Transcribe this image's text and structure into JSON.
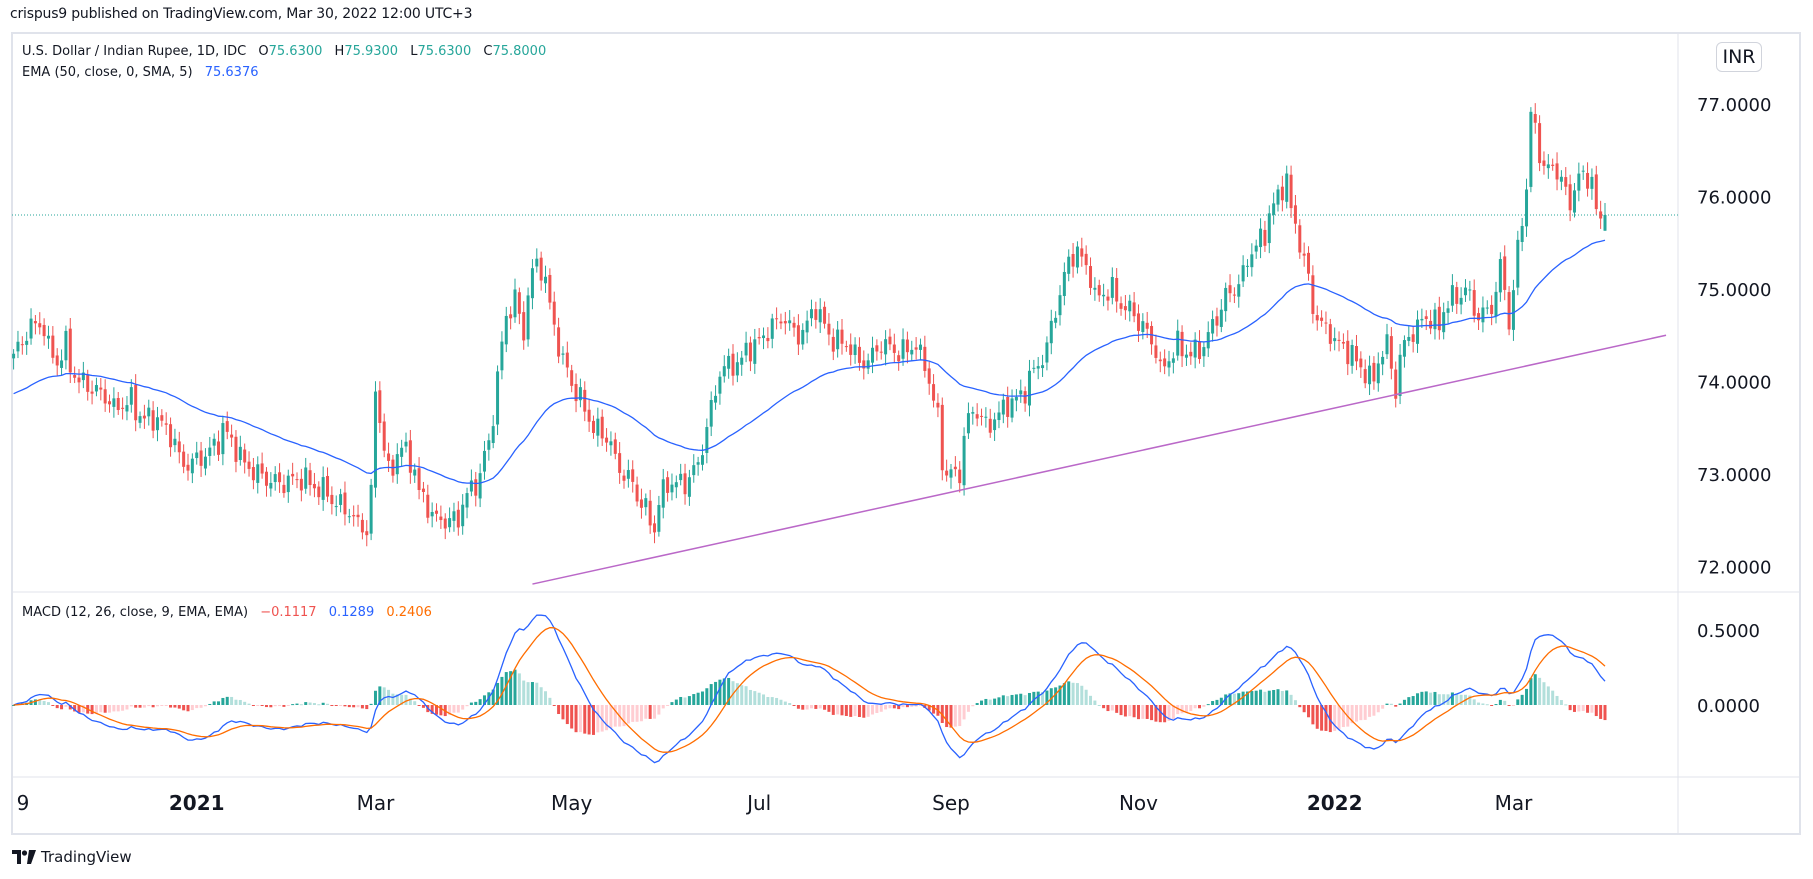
{
  "header": {
    "published": "crispus9 published on TradingView.com, Mar 30, 2022 12:00 UTC+3"
  },
  "legend": {
    "symbol": "U.S. Dollar / Indian Rupee, 1D, IDC",
    "open_label": "O",
    "open": "75.6300",
    "high_label": "H",
    "high": "75.9300",
    "low_label": "L",
    "low": "75.6300",
    "close_label": "C",
    "close": "75.8000",
    "ema_label": "EMA (50, close, 0, SMA, 5)",
    "ema_value": "75.6376",
    "macd_label": "MACD (12, 26, close, 9, EMA, EMA)",
    "macd_hist": "−0.1117",
    "macd_line": "0.1289",
    "macd_signal": "0.2406"
  },
  "currency_badge": "INR",
  "footer": {
    "brand": "TradingView"
  },
  "colors": {
    "up": "#26a69a",
    "down": "#ef5350",
    "ema": "#2962ff",
    "macd": "#2962ff",
    "signal": "#ff6d00",
    "hist_up_strong": "#26a69a",
    "hist_up_weak": "#b2dfdb",
    "hist_down_strong": "#ef5350",
    "hist_down_weak": "#ffcdd2",
    "trendline": "#ba68c8",
    "last_price_line": "#26a69a"
  },
  "chart_data": {
    "type": "candlestick",
    "symbol": "USDINR",
    "interval": "1D",
    "price_axis": {
      "ticks": [
        "77.0000",
        "76.0000",
        "75.0000",
        "74.0000",
        "73.0000",
        "72.0000"
      ],
      "tick_values": [
        77,
        76,
        75,
        74,
        73,
        72
      ],
      "range": [
        71.8,
        77.5
      ]
    },
    "macd_axis": {
      "ticks": [
        "0.5000",
        "0.0000"
      ],
      "tick_values": [
        0.5,
        0
      ],
      "range": [
        -0.48,
        0.75
      ]
    },
    "time_axis": [
      {
        "label": "9",
        "date": "2020-11-09",
        "bold": false
      },
      {
        "label": "2021",
        "date": "2021-01-01",
        "bold": true
      },
      {
        "label": "Mar",
        "date": "2021-03-01",
        "bold": false
      },
      {
        "label": "May",
        "date": "2021-05-03",
        "bold": false
      },
      {
        "label": "Jul",
        "date": "2021-07-01",
        "bold": false
      },
      {
        "label": "Sep",
        "date": "2021-09-01",
        "bold": false
      },
      {
        "label": "Nov",
        "date": "2021-11-01",
        "bold": false
      },
      {
        "label": "2022",
        "date": "2022-01-03",
        "bold": true
      },
      {
        "label": "Mar",
        "date": "2022-03-01",
        "bold": false
      }
    ],
    "start_date": "2020-11-04",
    "end_date": "2022-03-30",
    "last_candle": {
      "open": 75.63,
      "high": 75.93,
      "low": 75.63,
      "close": 75.8
    },
    "last_price": 75.8,
    "close_path": [
      [
        "2020-11-04",
        74.3
      ],
      [
        "2020-11-10",
        74.6
      ],
      [
        "2020-11-13",
        74.6
      ],
      [
        "2020-11-18",
        74.2
      ],
      [
        "2020-11-20",
        74.4
      ],
      [
        "2020-11-25",
        74.0
      ],
      [
        "2020-12-01",
        73.9
      ],
      [
        "2020-12-07",
        73.7
      ],
      [
        "2020-12-11",
        73.8
      ],
      [
        "2020-12-16",
        73.6
      ],
      [
        "2020-12-21",
        73.6
      ],
      [
        "2020-12-29",
        73.1
      ],
      [
        "2021-01-05",
        73.2
      ],
      [
        "2021-01-11",
        73.5
      ],
      [
        "2021-01-15",
        73.2
      ],
      [
        "2021-01-21",
        73.0
      ],
      [
        "2021-01-28",
        72.9
      ],
      [
        "2021-02-05",
        72.95
      ],
      [
        "2021-02-12",
        72.8
      ],
      [
        "2021-02-19",
        72.6
      ],
      [
        "2021-02-25",
        72.4
      ],
      [
        "2021-03-01",
        73.9
      ],
      [
        "2021-03-04",
        73.0
      ],
      [
        "2021-03-09",
        73.3
      ],
      [
        "2021-03-15",
        72.8
      ],
      [
        "2021-03-19",
        72.5
      ],
      [
        "2021-03-26",
        72.5
      ],
      [
        "2021-04-01",
        72.9
      ],
      [
        "2021-04-06",
        73.3
      ],
      [
        "2021-04-09",
        74.4
      ],
      [
        "2021-04-14",
        74.9
      ],
      [
        "2021-04-16",
        74.5
      ],
      [
        "2021-04-21",
        75.3
      ],
      [
        "2021-04-26",
        74.8
      ],
      [
        "2021-04-29",
        74.2
      ],
      [
        "2021-05-04",
        73.9
      ],
      [
        "2021-05-07",
        73.6
      ],
      [
        "2021-05-13",
        73.4
      ],
      [
        "2021-05-19",
        73.0
      ],
      [
        "2021-05-25",
        72.7
      ],
      [
        "2021-05-28",
        72.4
      ],
      [
        "2021-06-02",
        72.9
      ],
      [
        "2021-06-08",
        72.9
      ],
      [
        "2021-06-14",
        73.3
      ],
      [
        "2021-06-18",
        74.1
      ],
      [
        "2021-06-24",
        74.2
      ],
      [
        "2021-06-30",
        74.4
      ],
      [
        "2021-07-06",
        74.6
      ],
      [
        "2021-07-09",
        74.7
      ],
      [
        "2021-07-14",
        74.5
      ],
      [
        "2021-07-20",
        74.8
      ],
      [
        "2021-07-23",
        74.5
      ],
      [
        "2021-07-29",
        74.4
      ],
      [
        "2021-08-04",
        74.2
      ],
      [
        "2021-08-10",
        74.4
      ],
      [
        "2021-08-16",
        74.3
      ],
      [
        "2021-08-20",
        74.4
      ],
      [
        "2021-08-24",
        74.2
      ],
      [
        "2021-08-27",
        73.6
      ],
      [
        "2021-08-31",
        73.0
      ],
      [
        "2021-09-03",
        73.0
      ],
      [
        "2021-09-08",
        73.7
      ],
      [
        "2021-09-13",
        73.5
      ],
      [
        "2021-09-17",
        73.7
      ],
      [
        "2021-09-22",
        73.8
      ],
      [
        "2021-09-28",
        74.1
      ],
      [
        "2021-10-04",
        74.6
      ],
      [
        "2021-10-08",
        75.3
      ],
      [
        "2021-10-12",
        75.4
      ],
      [
        "2021-10-18",
        74.9
      ],
      [
        "2021-10-22",
        75.0
      ],
      [
        "2021-10-27",
        74.8
      ],
      [
        "2021-11-02",
        74.6
      ],
      [
        "2021-11-08",
        74.1
      ],
      [
        "2021-11-12",
        74.4
      ],
      [
        "2021-11-17",
        74.3
      ],
      [
        "2021-11-22",
        74.4
      ],
      [
        "2021-11-26",
        74.8
      ],
      [
        "2021-12-01",
        75.0
      ],
      [
        "2021-12-07",
        75.4
      ],
      [
        "2021-12-13",
        75.8
      ],
      [
        "2021-12-17",
        76.2
      ],
      [
        "2021-12-21",
        75.7
      ],
      [
        "2021-12-24",
        75.1
      ],
      [
        "2021-12-29",
        74.6
      ],
      [
        "2022-01-04",
        74.4
      ],
      [
        "2022-01-10",
        74.2
      ],
      [
        "2022-01-14",
        74.0
      ],
      [
        "2022-01-19",
        74.4
      ],
      [
        "2022-01-21",
        73.9
      ],
      [
        "2022-01-26",
        74.5
      ],
      [
        "2022-02-01",
        74.7
      ],
      [
        "2022-02-04",
        74.6
      ],
      [
        "2022-02-09",
        74.9
      ],
      [
        "2022-02-14",
        75.0
      ],
      [
        "2022-02-17",
        74.7
      ],
      [
        "2022-02-22",
        74.8
      ],
      [
        "2022-02-24",
        75.2
      ],
      [
        "2022-02-28",
        74.6
      ],
      [
        "2022-03-03",
        75.8
      ],
      [
        "2022-03-07",
        76.9
      ],
      [
        "2022-03-10",
        76.3
      ],
      [
        "2022-03-15",
        76.3
      ],
      [
        "2022-03-18",
        75.9
      ],
      [
        "2022-03-22",
        76.2
      ],
      [
        "2022-03-25",
        76.2
      ],
      [
        "2022-03-29",
        75.7
      ],
      [
        "2022-03-30",
        75.8
      ]
    ],
    "indicators": {
      "ema": {
        "period": 50,
        "source": "close"
      },
      "macd": {
        "fast": 12,
        "slow": 26,
        "signal": 9
      }
    },
    "trendline": {
      "start": [
        "2021-04-20",
        71.81
      ],
      "end": [
        "2022-04-19",
        74.5
      ]
    }
  }
}
